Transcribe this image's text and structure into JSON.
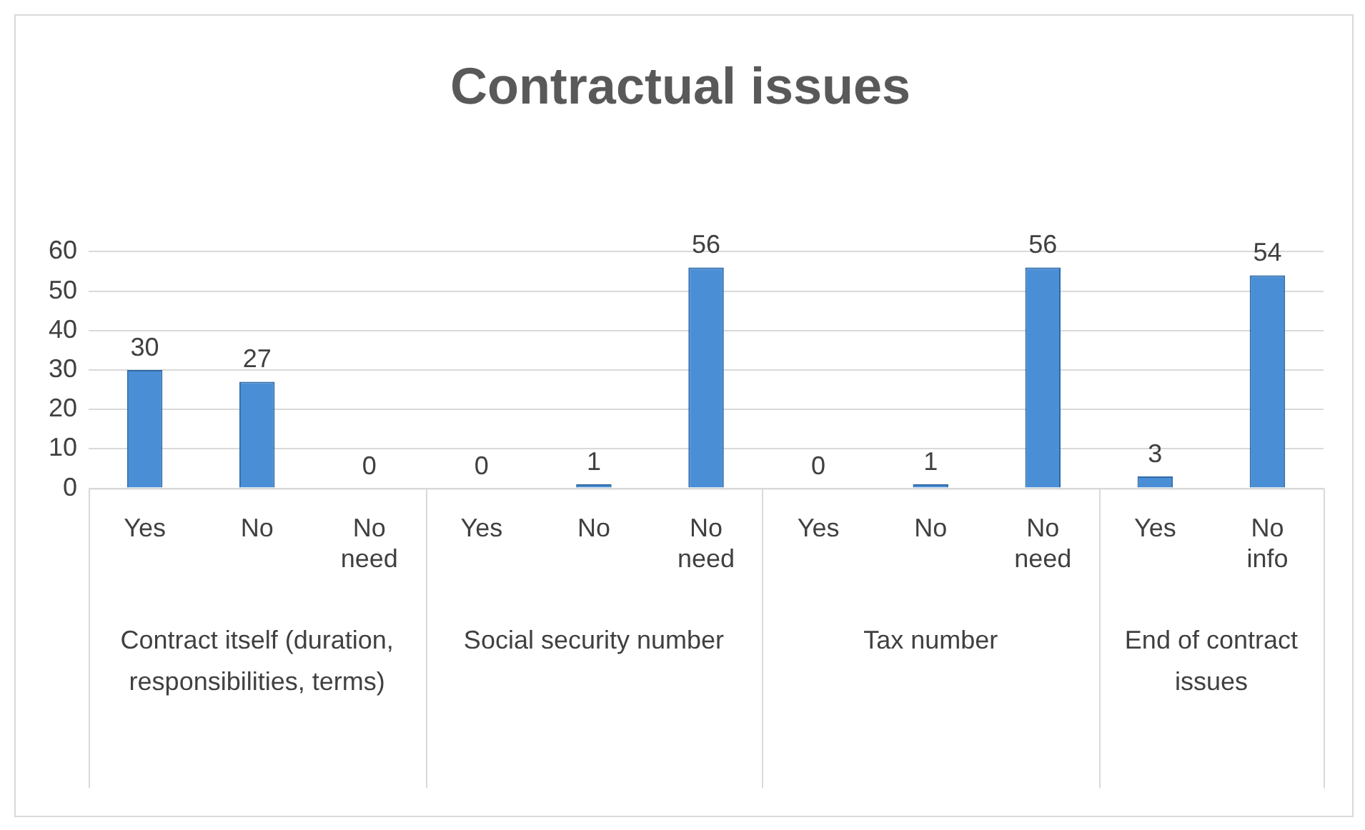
{
  "chart_data": {
    "type": "bar",
    "title": "Contractual issues",
    "categories": [
      "Yes",
      "No",
      "No need",
      "Yes",
      "No",
      "No need",
      "Yes",
      "No",
      "No need",
      "Yes",
      "No info"
    ],
    "values": [
      30,
      27,
      0,
      0,
      1,
      56,
      0,
      1,
      56,
      3,
      54
    ],
    "color": "#4a8fd6",
    "ylim": [
      0,
      60
    ],
    "yticks": [
      0,
      10,
      20,
      30,
      40,
      50,
      60
    ],
    "grid": "y",
    "data_labels": true,
    "legend": false,
    "annotations": [
      "Contract itself (duration, responsibilities, terms)",
      "Social security number",
      "Tax number",
      "End of contract issues"
    ]
  }
}
